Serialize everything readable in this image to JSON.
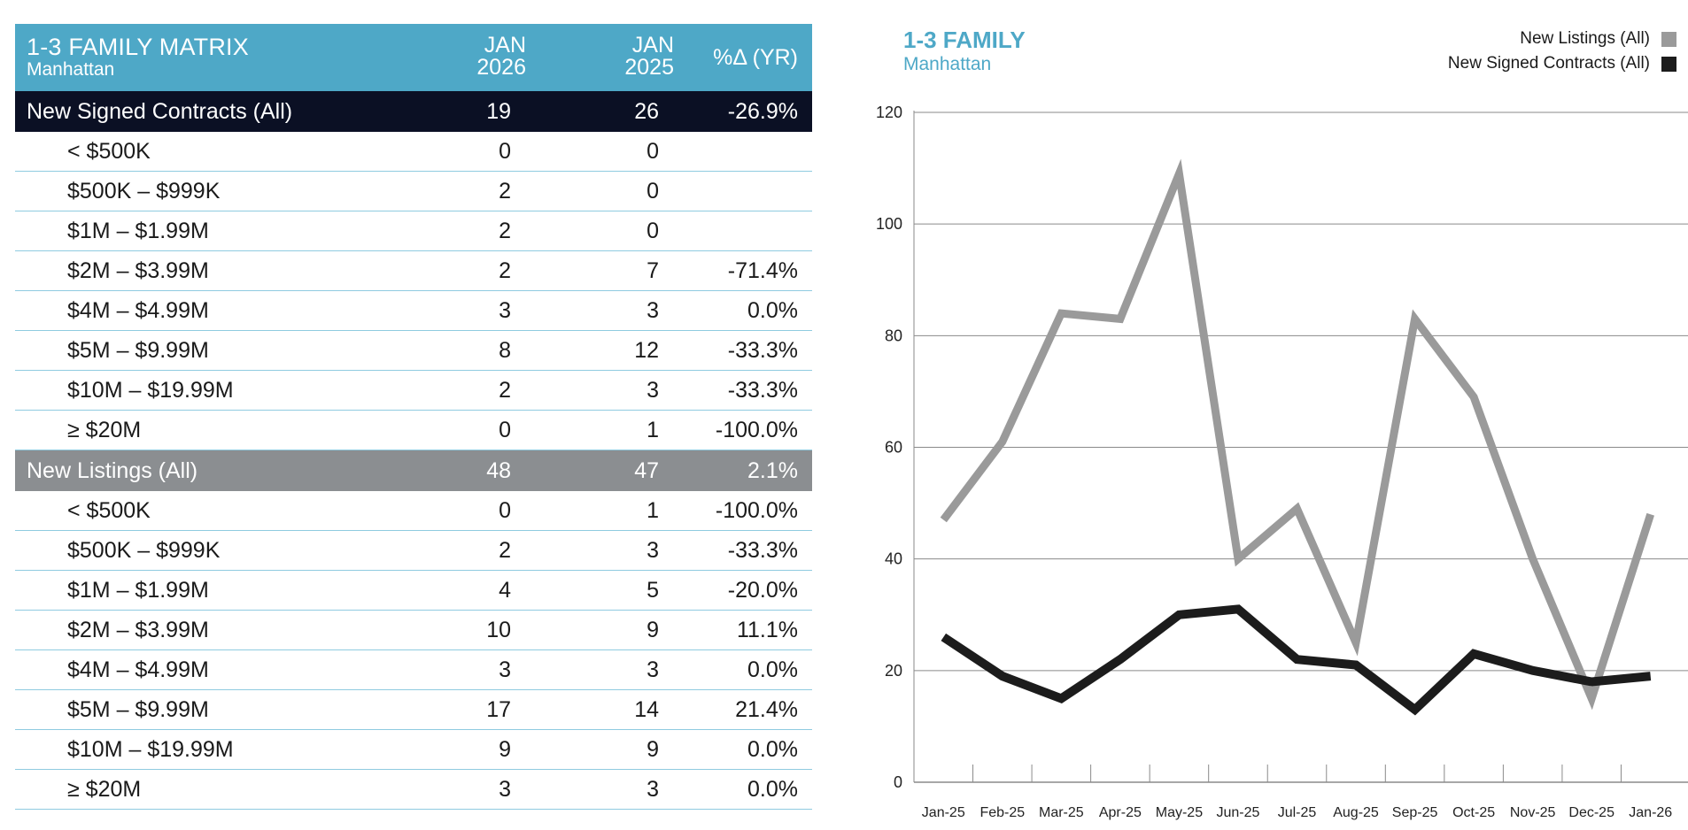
{
  "table": {
    "title": "1-3 FAMILY MATRIX",
    "subtitle": "Manhattan",
    "col1": "JAN\n2026",
    "col1_l1": "JAN",
    "col1_l2": "2026",
    "col2_l1": "JAN",
    "col2_l2": "2025",
    "col3": "%Δ (YR)",
    "sections": [
      {
        "label": "New Signed Contracts (All)",
        "v1": "19",
        "v2": "26",
        "v3": "-26.9%",
        "rows": [
          {
            "label": "< $500K",
            "v1": "0",
            "v2": "0",
            "v3": ""
          },
          {
            "label": "$500K – $999K",
            "v1": "2",
            "v2": "0",
            "v3": ""
          },
          {
            "label": "$1M – $1.99M",
            "v1": "2",
            "v2": "0",
            "v3": ""
          },
          {
            "label": "$2M – $3.99M",
            "v1": "2",
            "v2": "7",
            "v3": "-71.4%"
          },
          {
            "label": "$4M – $4.99M",
            "v1": "3",
            "v2": "3",
            "v3": "0.0%"
          },
          {
            "label": "$5M – $9.99M",
            "v1": "8",
            "v2": "12",
            "v3": "-33.3%"
          },
          {
            "label": "$10M – $19.99M",
            "v1": "2",
            "v2": "3",
            "v3": "-33.3%"
          },
          {
            "label": "≥ $20M",
            "v1": "0",
            "v2": "1",
            "v3": "-100.0%"
          }
        ]
      },
      {
        "label": "New Listings (All)",
        "v1": "48",
        "v2": "47",
        "v3": "2.1%",
        "rows": [
          {
            "label": "< $500K",
            "v1": "0",
            "v2": "1",
            "v3": "-100.0%"
          },
          {
            "label": "$500K – $999K",
            "v1": "2",
            "v2": "3",
            "v3": "-33.3%"
          },
          {
            "label": "$1M – $1.99M",
            "v1": "4",
            "v2": "5",
            "v3": "-20.0%"
          },
          {
            "label": "$2M – $3.99M",
            "v1": "10",
            "v2": "9",
            "v3": "11.1%"
          },
          {
            "label": "$4M – $4.99M",
            "v1": "3",
            "v2": "3",
            "v3": "0.0%"
          },
          {
            "label": "$5M – $9.99M",
            "v1": "17",
            "v2": "14",
            "v3": "21.4%"
          },
          {
            "label": "$10M – $19.99M",
            "v1": "9",
            "v2": "9",
            "v3": "0.0%"
          },
          {
            "label": "≥ $20M",
            "v1": "3",
            "v2": "3",
            "v3": "0.0%"
          }
        ]
      }
    ]
  },
  "chart_data": {
    "type": "line",
    "title": "1-3 FAMILY",
    "subtitle": "Manhattan",
    "categories": [
      "Jan-25",
      "Feb-25",
      "Mar-25",
      "Apr-25",
      "May-25",
      "Jun-25",
      "Jul-25",
      "Aug-25",
      "Sep-25",
      "Oct-25",
      "Nov-25",
      "Dec-25",
      "Jan-26"
    ],
    "ylim": [
      0,
      120
    ],
    "yticks": [
      0,
      20,
      40,
      60,
      80,
      100,
      120
    ],
    "grid": true,
    "legend_position": "top-right",
    "series": [
      {
        "name": "New Listings (All)",
        "color": "#9a9a9a",
        "values": [
          47,
          61,
          84,
          83,
          109,
          40,
          49,
          25,
          83,
          69,
          40,
          15,
          48
        ]
      },
      {
        "name": "New Signed Contracts (All)",
        "color": "#1c1c1c",
        "values": [
          26,
          19,
          15,
          22,
          30,
          31,
          22,
          21,
          13,
          23,
          20,
          18,
          19
        ]
      }
    ]
  }
}
